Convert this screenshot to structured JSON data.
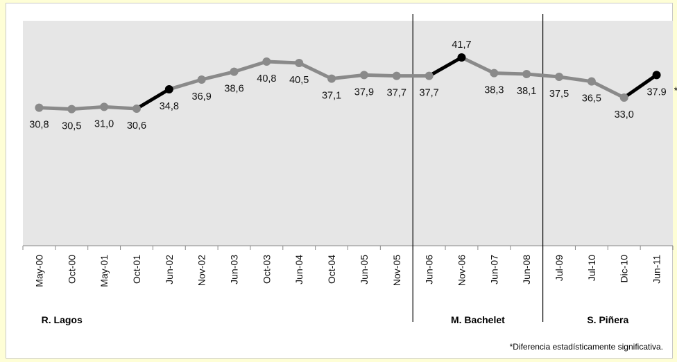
{
  "chart_data": {
    "type": "line",
    "categories": [
      "May-00",
      "Oct-00",
      "May-01",
      "Oct-01",
      "Jun-02",
      "Nov-02",
      "Jun-03",
      "Oct-03",
      "Jun-04",
      "Oct-04",
      "Jun-05",
      "Nov-05",
      "Jun-06",
      "Nov-06",
      "Jun-07",
      "Jun-08",
      "Jul-09",
      "Jul-10",
      "Dic-10",
      "Jun-11"
    ],
    "values": [
      30.8,
      30.5,
      31.0,
      30.6,
      34.8,
      36.9,
      38.6,
      40.8,
      40.5,
      37.1,
      37.9,
      37.7,
      37.7,
      41.7,
      38.3,
      38.1,
      37.5,
      36.5,
      33.0,
      37.9
    ],
    "value_labels": [
      "30,8",
      "30,5",
      "31,0",
      "30,6",
      "34,8",
      "36,9",
      "38,6",
      "40,8",
      "40,5",
      "37,1",
      "37,9",
      "37,7",
      "37,7",
      "41,7",
      "38,3",
      "38,1",
      "37,5",
      "36,5",
      "33,0",
      "37.9"
    ],
    "highlighted_segments_end_index": [
      4,
      13,
      19
    ],
    "asterisk_marker": "*",
    "periods": [
      {
        "label": "R. Lagos",
        "start_index": 0,
        "end_index": 11
      },
      {
        "label": "M. Bachelet",
        "start_index": 12,
        "end_index": 15
      },
      {
        "label": "S. Piñera",
        "start_index": 16,
        "end_index": 19
      }
    ],
    "ylim": [
      0,
      50
    ],
    "grid": false,
    "footnote": "*Diferencia estadísticamente significativa.",
    "colors": {
      "line": "#8a8a8a",
      "highlight": "#000000",
      "plot_bg": "#e6e6e6",
      "page_bg": "#fefed6"
    }
  }
}
